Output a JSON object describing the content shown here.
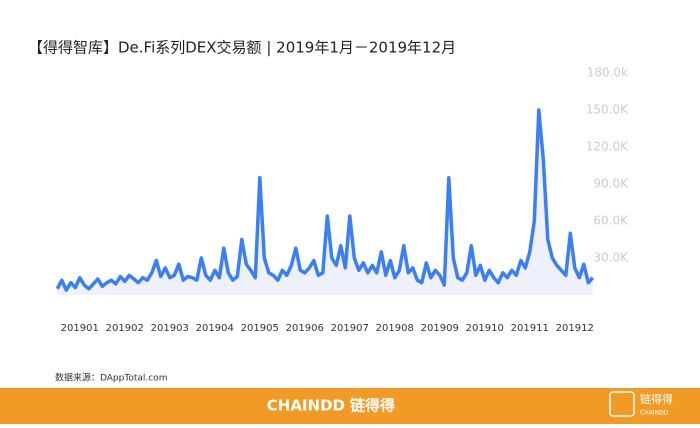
{
  "chart_data": {
    "type": "line",
    "title": "【得得智库】De.Fi系列DEX交易额 | 2019年1月－2019年12月",
    "categories": [
      null,
      null,
      null,
      null,
      null,
      "201901",
      null,
      null,
      null,
      null,
      null,
      null,
      null,
      null,
      null,
      "201902",
      null,
      null,
      null,
      null,
      null,
      null,
      null,
      null,
      null,
      "201903",
      null,
      null,
      null,
      null,
      null,
      null,
      null,
      null,
      null,
      "201904",
      null,
      null,
      null,
      null,
      null,
      null,
      null,
      null,
      null,
      "201905",
      null,
      null,
      null,
      null,
      null,
      null,
      null,
      null,
      null,
      "201906",
      null,
      null,
      null,
      null,
      null,
      null,
      null,
      null,
      null,
      "201907",
      null,
      null,
      null,
      null,
      null,
      null,
      null,
      null,
      null,
      "201908",
      null,
      null,
      null,
      null,
      null,
      null,
      null,
      null,
      null,
      "201909",
      null,
      null,
      null,
      null,
      null,
      null,
      null,
      null,
      null,
      "201910",
      null,
      null,
      null,
      null,
      null,
      null,
      null,
      null,
      null,
      "201911",
      null,
      null,
      null,
      null,
      null,
      null,
      null,
      null,
      null,
      "201912",
      null,
      null,
      null,
      null
    ],
    "values": [
      5,
      12,
      4,
      10,
      6,
      14,
      8,
      5,
      9,
      13,
      7,
      10,
      12,
      9,
      15,
      11,
      16,
      13,
      10,
      14,
      12,
      18,
      28,
      15,
      22,
      14,
      16,
      25,
      12,
      15,
      14,
      12,
      30,
      16,
      12,
      20,
      14,
      38,
      18,
      12,
      15,
      45,
      25,
      20,
      14,
      95,
      30,
      18,
      16,
      12,
      20,
      16,
      24,
      38,
      20,
      18,
      22,
      28,
      16,
      18,
      64,
      30,
      24,
      40,
      22,
      64,
      30,
      20,
      26,
      18,
      24,
      18,
      35,
      16,
      28,
      14,
      20,
      40,
      18,
      22,
      12,
      10,
      26,
      14,
      20,
      16,
      8,
      95,
      30,
      14,
      12,
      18,
      40,
      16,
      24,
      12,
      20,
      14,
      10,
      18,
      14,
      20,
      16,
      28,
      22,
      35,
      60,
      150,
      110,
      45,
      30,
      24,
      20,
      16,
      50,
      22,
      14,
      25,
      10,
      14
    ],
    "color": "#3a7ff5",
    "ylim": [
      0,
      180
    ],
    "yticks": [
      {
        "value": 30,
        "label": "30.0K"
      },
      {
        "value": 60,
        "label": "60.0K"
      },
      {
        "value": 90,
        "label": "90.0K"
      },
      {
        "value": 120,
        "label": "120.0K"
      },
      {
        "value": 150,
        "label": "150.0K"
      },
      {
        "value": 180,
        "label": "180.0k"
      }
    ]
  },
  "source": "数据来源：DAppTotal.com",
  "footer": {
    "brand": "CHAINDD",
    "brand_cn": "链得得",
    "logo": "链得得",
    "logo_sub": "CHAINDD"
  }
}
